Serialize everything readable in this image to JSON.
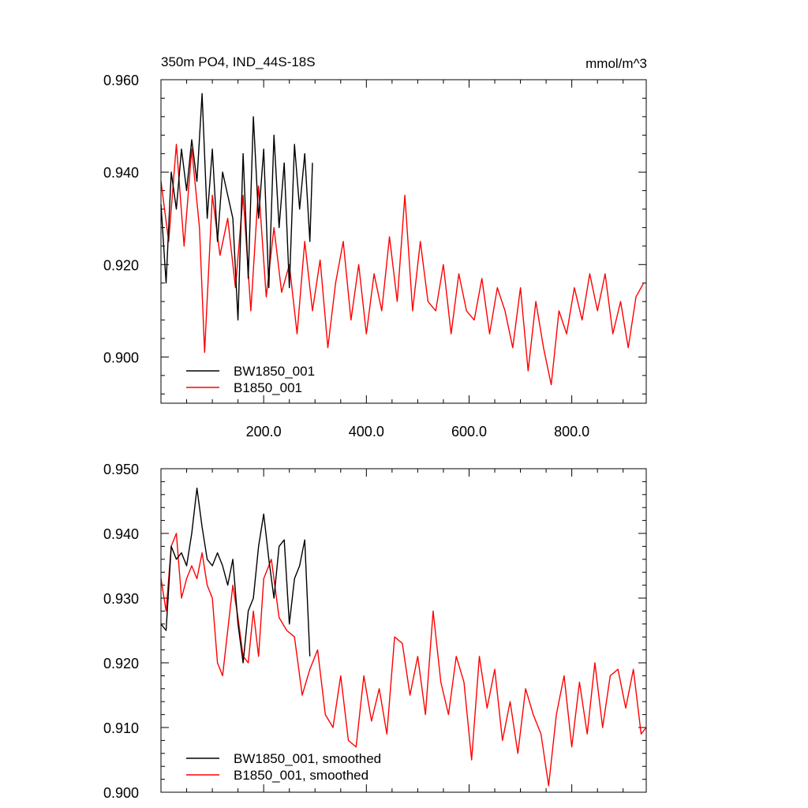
{
  "chart_data": [
    {
      "type": "line",
      "title": "350m PO4, IND_44S-18S",
      "units": "mmol/m^3",
      "xlim": [
        0,
        945
      ],
      "ylim": [
        0.89,
        0.96
      ],
      "xticks": [
        {
          "value": 200,
          "label": "200.0"
        },
        {
          "value": 400,
          "label": "400.0"
        },
        {
          "value": 600,
          "label": "600.0"
        },
        {
          "value": 800,
          "label": "800.0"
        }
      ],
      "yticks": [
        {
          "value": 0.9,
          "label": "0.900"
        },
        {
          "value": 0.92,
          "label": "0.920"
        },
        {
          "value": 0.94,
          "label": "0.940"
        },
        {
          "value": 0.96,
          "label": "0.960"
        }
      ],
      "legend_placement": "lower-left",
      "series": [
        {
          "name": "BW1850_001",
          "color": "#000000",
          "x": [
            0,
            10,
            20,
            30,
            40,
            50,
            60,
            70,
            80,
            90,
            100,
            110,
            120,
            130,
            140,
            150,
            160,
            170,
            180,
            190,
            200,
            210,
            220,
            230,
            240,
            250,
            260,
            270,
            280,
            290,
            295
          ],
          "values": [
            0.933,
            0.916,
            0.94,
            0.932,
            0.945,
            0.936,
            0.947,
            0.938,
            0.957,
            0.93,
            0.945,
            0.925,
            0.94,
            0.935,
            0.93,
            0.908,
            0.944,
            0.917,
            0.952,
            0.93,
            0.945,
            0.915,
            0.948,
            0.928,
            0.942,
            0.915,
            0.946,
            0.932,
            0.944,
            0.925,
            0.942
          ]
        },
        {
          "name": "B1850_001",
          "color": "#ff0000",
          "x": [
            0,
            15,
            30,
            45,
            60,
            75,
            85,
            100,
            115,
            130,
            145,
            160,
            175,
            190,
            205,
            220,
            235,
            250,
            265,
            280,
            295,
            310,
            325,
            340,
            355,
            370,
            385,
            400,
            415,
            430,
            445,
            460,
            475,
            490,
            505,
            520,
            535,
            550,
            565,
            580,
            595,
            610,
            625,
            640,
            655,
            670,
            685,
            700,
            715,
            730,
            745,
            760,
            775,
            790,
            805,
            820,
            835,
            850,
            865,
            880,
            895,
            910,
            925,
            940
          ],
          "values": [
            0.938,
            0.925,
            0.946,
            0.924,
            0.945,
            0.928,
            0.901,
            0.935,
            0.922,
            0.93,
            0.915,
            0.935,
            0.91,
            0.937,
            0.913,
            0.928,
            0.914,
            0.92,
            0.905,
            0.925,
            0.91,
            0.921,
            0.902,
            0.916,
            0.925,
            0.908,
            0.92,
            0.905,
            0.918,
            0.91,
            0.926,
            0.912,
            0.935,
            0.91,
            0.925,
            0.912,
            0.91,
            0.92,
            0.905,
            0.918,
            0.91,
            0.908,
            0.917,
            0.905,
            0.915,
            0.91,
            0.902,
            0.915,
            0.897,
            0.912,
            0.902,
            0.894,
            0.91,
            0.905,
            0.915,
            0.908,
            0.918,
            0.91,
            0.918,
            0.905,
            0.912,
            0.902,
            0.913,
            0.916
          ]
        }
      ]
    },
    {
      "type": "line",
      "xlim": [
        0,
        945
      ],
      "ylim": [
        0.9,
        0.95
      ],
      "yticks": [
        {
          "value": 0.9,
          "label": "0.900"
        },
        {
          "value": 0.91,
          "label": "0.910"
        },
        {
          "value": 0.92,
          "label": "0.920"
        },
        {
          "value": 0.93,
          "label": "0.930"
        },
        {
          "value": 0.94,
          "label": "0.940"
        },
        {
          "value": 0.95,
          "label": "0.950"
        }
      ],
      "legend_placement": "lower-left",
      "series": [
        {
          "name": "BW1850_001, smoothed",
          "color": "#000000",
          "x": [
            0,
            10,
            20,
            30,
            40,
            50,
            60,
            70,
            80,
            90,
            100,
            110,
            120,
            130,
            140,
            150,
            160,
            170,
            180,
            190,
            200,
            210,
            220,
            230,
            240,
            250,
            260,
            270,
            280,
            290
          ],
          "values": [
            0.926,
            0.925,
            0.938,
            0.936,
            0.937,
            0.935,
            0.94,
            0.947,
            0.941,
            0.936,
            0.935,
            0.937,
            0.935,
            0.932,
            0.936,
            0.926,
            0.92,
            0.928,
            0.93,
            0.938,
            0.943,
            0.936,
            0.93,
            0.938,
            0.939,
            0.926,
            0.933,
            0.935,
            0.939,
            0.921
          ]
        },
        {
          "name": "B1850_001, smoothed",
          "color": "#ff0000",
          "x": [
            0,
            10,
            20,
            30,
            40,
            50,
            60,
            70,
            80,
            90,
            100,
            110,
            120,
            130,
            140,
            150,
            160,
            170,
            180,
            190,
            200,
            215,
            230,
            245,
            260,
            275,
            290,
            305,
            320,
            335,
            350,
            365,
            380,
            395,
            410,
            425,
            440,
            455,
            470,
            485,
            500,
            515,
            530,
            545,
            560,
            575,
            590,
            605,
            620,
            635,
            650,
            665,
            680,
            695,
            710,
            725,
            740,
            755,
            770,
            785,
            800,
            815,
            830,
            845,
            860,
            875,
            890,
            905,
            920,
            935,
            945
          ],
          "values": [
            0.933,
            0.928,
            0.938,
            0.94,
            0.93,
            0.933,
            0.935,
            0.933,
            0.937,
            0.932,
            0.93,
            0.92,
            0.918,
            0.925,
            0.932,
            0.927,
            0.921,
            0.92,
            0.928,
            0.921,
            0.933,
            0.936,
            0.927,
            0.925,
            0.924,
            0.915,
            0.919,
            0.922,
            0.912,
            0.91,
            0.918,
            0.908,
            0.907,
            0.918,
            0.911,
            0.916,
            0.909,
            0.924,
            0.923,
            0.915,
            0.921,
            0.912,
            0.928,
            0.917,
            0.912,
            0.921,
            0.917,
            0.905,
            0.921,
            0.913,
            0.919,
            0.908,
            0.914,
            0.906,
            0.916,
            0.912,
            0.909,
            0.901,
            0.912,
            0.918,
            0.907,
            0.917,
            0.909,
            0.92,
            0.91,
            0.918,
            0.919,
            0.913,
            0.919,
            0.909,
            0.91
          ]
        }
      ]
    }
  ]
}
